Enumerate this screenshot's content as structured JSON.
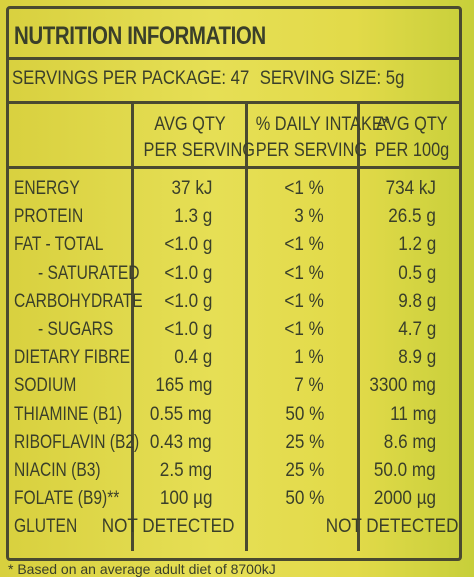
{
  "title": "NUTRITION INFORMATION",
  "servings_per_package": "SERVINGS PER PACKAGE: 47",
  "serving_size": "SERVING SIZE: 5g",
  "headers": {
    "col1_line1": "AVG QTY",
    "col1_line2": "PER SERVING",
    "col2_line1": "% DAILY INTAKE*",
    "col2_line2": "PER SERVING",
    "col3_line1": "AVG QTY",
    "col3_line2": "PER 100g"
  },
  "rows": [
    {
      "label": "ENERGY",
      "per_serving": "37 kJ",
      "daily_intake": "<1 %",
      "per_100g": "734 kJ"
    },
    {
      "label": "PROTEIN",
      "per_serving": "1.3 g",
      "daily_intake": "3 %",
      "per_100g": "26.5 g"
    },
    {
      "label": "FAT - TOTAL",
      "per_serving": "<1.0 g",
      "daily_intake": "<1 %",
      "per_100g": "1.2 g"
    },
    {
      "label": "- SATURATED",
      "per_serving": "<1.0 g",
      "daily_intake": "<1 %",
      "per_100g": "0.5 g"
    },
    {
      "label": "CARBOHYDRATE",
      "per_serving": "<1.0 g",
      "daily_intake": "<1 %",
      "per_100g": "9.8 g"
    },
    {
      "label": "- SUGARS",
      "per_serving": "<1.0 g",
      "daily_intake": "<1 %",
      "per_100g": "4.7 g"
    },
    {
      "label": "DIETARY FIBRE",
      "per_serving": "0.4 g",
      "daily_intake": "1 %",
      "per_100g": "8.9 g"
    },
    {
      "label": "SODIUM",
      "per_serving": "165 mg",
      "daily_intake": "7 %",
      "per_100g": "3300 mg"
    },
    {
      "label": "THIAMINE (B1)",
      "per_serving": "0.55 mg",
      "daily_intake": "50 %",
      "per_100g": "11 mg"
    },
    {
      "label": "RIBOFLAVIN (B2)",
      "per_serving": "0.43 mg",
      "daily_intake": "25 %",
      "per_100g": "8.6 mg"
    },
    {
      "label": "NIACIN (B3)",
      "per_serving": "2.5 mg",
      "daily_intake": "25 %",
      "per_100g": "50.0 mg"
    },
    {
      "label": "FOLATE (B9)**",
      "per_serving": "100 µg",
      "daily_intake": "50 %",
      "per_100g": "2000 µg"
    },
    {
      "label": "GLUTEN",
      "per_serving": "NOT DETECTED",
      "daily_intake": "",
      "per_100g": "NOT DETECTED"
    }
  ],
  "footnote": "* Based on an average adult diet of 8700kJ",
  "colors": {
    "label_bg": "#e2da49",
    "ink": "#3a3f2a",
    "border": "#4a4a30"
  }
}
